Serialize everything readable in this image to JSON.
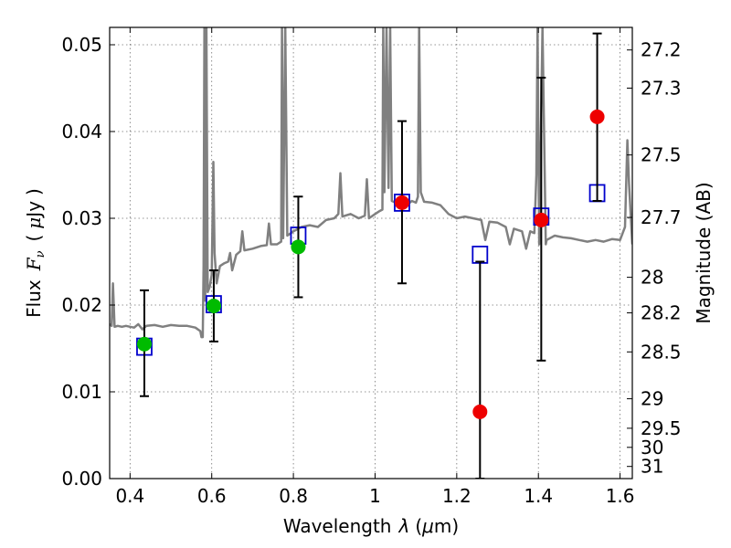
{
  "chart_data": {
    "type": "scatter",
    "title": "",
    "xlabel_parts": [
      "Wavelength",
      "λ",
      "(",
      "μ",
      "m)"
    ],
    "ylabel_parts": [
      "Flux",
      "F",
      "ν",
      "(",
      "μ",
      "Jy",
      ")"
    ],
    "y2label": "Magnitude (AB)",
    "xlim": [
      0.35,
      1.63
    ],
    "ylim": [
      0.0,
      0.052
    ],
    "x_ticks": [
      0.4,
      0.6,
      0.8,
      1.0,
      1.2,
      1.4,
      1.6
    ],
    "x_tick_labels": [
      "0.4",
      "0.6",
      "0.8",
      "1",
      "1.2",
      "1.4",
      "1.6"
    ],
    "y_ticks": [
      0.0,
      0.01,
      0.02,
      0.03,
      0.04,
      0.05
    ],
    "y_tick_labels": [
      "0.00",
      "0.01",
      "0.02",
      "0.03",
      "0.04",
      "0.05"
    ],
    "mag_ticks": [
      {
        "label": "27.2",
        "flux": 0.0494
      },
      {
        "label": "27.3",
        "flux": 0.045
      },
      {
        "label": "27.5",
        "flux": 0.0373
      },
      {
        "label": "27.7",
        "flux": 0.0301
      },
      {
        "label": "28",
        "flux": 0.0232
      },
      {
        "label": "28.2",
        "flux": 0.0191
      },
      {
        "label": "28.5",
        "flux": 0.0146
      },
      {
        "label": "29",
        "flux": 0.0092
      },
      {
        "label": "29.5",
        "flux": 0.0058
      },
      {
        "label": "30",
        "flux": 0.0036
      },
      {
        "label": "31",
        "flux": 0.0014
      }
    ],
    "grid": true,
    "colors": {
      "model_spectrum": "#808080",
      "model_photometry": "#0000cc",
      "detection": "#00bb00",
      "non_detection": "#ee0000",
      "errorbar": "#000000"
    },
    "series": [
      {
        "kind": "model_spectrum",
        "points": [
          [
            0.35,
            0.0178
          ],
          [
            0.355,
            0.0176
          ],
          [
            0.358,
            0.0225
          ],
          [
            0.362,
            0.0175
          ],
          [
            0.37,
            0.0176
          ],
          [
            0.38,
            0.0175
          ],
          [
            0.39,
            0.0176
          ],
          [
            0.4,
            0.0175
          ],
          [
            0.41,
            0.0174
          ],
          [
            0.42,
            0.0178
          ],
          [
            0.43,
            0.0172
          ],
          [
            0.44,
            0.0176
          ],
          [
            0.46,
            0.0177
          ],
          [
            0.48,
            0.0175
          ],
          [
            0.5,
            0.0177
          ],
          [
            0.52,
            0.0176
          ],
          [
            0.54,
            0.0176
          ],
          [
            0.56,
            0.0174
          ],
          [
            0.572,
            0.017
          ],
          [
            0.575,
            0.0163
          ],
          [
            0.578,
            0.0163
          ],
          [
            0.58,
            0.0245
          ],
          [
            0.582,
            0.052
          ],
          [
            0.584,
            0.0205
          ],
          [
            0.587,
            0.052
          ],
          [
            0.59,
            0.0215
          ],
          [
            0.595,
            0.0221
          ],
          [
            0.6,
            0.0235
          ],
          [
            0.604,
            0.0365
          ],
          [
            0.607,
            0.026
          ],
          [
            0.612,
            0.0225
          ],
          [
            0.62,
            0.0245
          ],
          [
            0.63,
            0.0248
          ],
          [
            0.64,
            0.025
          ],
          [
            0.645,
            0.026
          ],
          [
            0.65,
            0.024
          ],
          [
            0.66,
            0.0258
          ],
          [
            0.67,
            0.0262
          ],
          [
            0.675,
            0.0285
          ],
          [
            0.68,
            0.0263
          ],
          [
            0.7,
            0.0265
          ],
          [
            0.72,
            0.0268
          ],
          [
            0.735,
            0.0269
          ],
          [
            0.74,
            0.0294
          ],
          [
            0.745,
            0.027
          ],
          [
            0.76,
            0.027
          ],
          [
            0.77,
            0.0273
          ],
          [
            0.772,
            0.052
          ],
          [
            0.775,
            0.0277
          ],
          [
            0.78,
            0.052
          ],
          [
            0.785,
            0.028
          ],
          [
            0.8,
            0.0285
          ],
          [
            0.82,
            0.029
          ],
          [
            0.84,
            0.0292
          ],
          [
            0.86,
            0.029
          ],
          [
            0.88,
            0.0298
          ],
          [
            0.9,
            0.03
          ],
          [
            0.91,
            0.0305
          ],
          [
            0.915,
            0.0352
          ],
          [
            0.92,
            0.0302
          ],
          [
            0.94,
            0.0305
          ],
          [
            0.96,
            0.03
          ],
          [
            0.975,
            0.0303
          ],
          [
            0.98,
            0.0345
          ],
          [
            0.985,
            0.03
          ],
          [
            1.0,
            0.0305
          ],
          [
            1.01,
            0.0308
          ],
          [
            1.018,
            0.031
          ],
          [
            1.02,
            0.052
          ],
          [
            1.023,
            0.033
          ],
          [
            1.028,
            0.052
          ],
          [
            1.033,
            0.0335
          ],
          [
            1.037,
            0.052
          ],
          [
            1.041,
            0.032
          ],
          [
            1.05,
            0.0318
          ],
          [
            1.06,
            0.032
          ],
          [
            1.08,
            0.0316
          ],
          [
            1.09,
            0.032
          ],
          [
            1.1,
            0.0318
          ],
          [
            1.105,
            0.0325
          ],
          [
            1.108,
            0.052
          ],
          [
            1.112,
            0.033
          ],
          [
            1.12,
            0.0319
          ],
          [
            1.14,
            0.0318
          ],
          [
            1.16,
            0.0315
          ],
          [
            1.18,
            0.0305
          ],
          [
            1.2,
            0.03
          ],
          [
            1.22,
            0.0302
          ],
          [
            1.24,
            0.03
          ],
          [
            1.26,
            0.0298
          ],
          [
            1.27,
            0.0275
          ],
          [
            1.28,
            0.0296
          ],
          [
            1.3,
            0.0295
          ],
          [
            1.32,
            0.029
          ],
          [
            1.33,
            0.027
          ],
          [
            1.34,
            0.0288
          ],
          [
            1.36,
            0.0285
          ],
          [
            1.37,
            0.0265
          ],
          [
            1.38,
            0.0285
          ],
          [
            1.39,
            0.0283
          ],
          [
            1.395,
            0.035
          ],
          [
            1.398,
            0.052
          ],
          [
            1.402,
            0.027
          ],
          [
            1.41,
            0.052
          ],
          [
            1.418,
            0.027
          ],
          [
            1.42,
            0.0275
          ],
          [
            1.44,
            0.028
          ],
          [
            1.46,
            0.0278
          ],
          [
            1.48,
            0.0277
          ],
          [
            1.5,
            0.0275
          ],
          [
            1.52,
            0.0273
          ],
          [
            1.54,
            0.0275
          ],
          [
            1.56,
            0.0273
          ],
          [
            1.58,
            0.0276
          ],
          [
            1.6,
            0.0275
          ],
          [
            1.612,
            0.029
          ],
          [
            1.618,
            0.039
          ],
          [
            1.622,
            0.034
          ],
          [
            1.63,
            0.027
          ]
        ]
      },
      {
        "kind": "model_photometry",
        "points": [
          [
            0.435,
            0.0152
          ],
          [
            0.605,
            0.0201
          ],
          [
            0.812,
            0.028
          ],
          [
            1.066,
            0.0318
          ],
          [
            1.257,
            0.0258
          ],
          [
            1.407,
            0.0302
          ],
          [
            1.544,
            0.0329
          ]
        ]
      },
      {
        "kind": "detection",
        "points": [
          {
            "x": 0.435,
            "y": 0.0155,
            "yerr": [
              0.0095,
              0.0217
            ]
          },
          {
            "x": 0.605,
            "y": 0.0199,
            "yerr": [
              0.0158,
              0.024
            ]
          },
          {
            "x": 0.812,
            "y": 0.0267,
            "yerr": [
              0.0209,
              0.0325
            ]
          }
        ]
      },
      {
        "kind": "non_detection",
        "points": [
          {
            "x": 1.066,
            "y": 0.0318,
            "yerr": [
              0.0225,
              0.0412
            ]
          },
          {
            "x": 1.257,
            "y": 0.0077,
            "yerr": [
              0.0,
              0.025
            ]
          },
          {
            "x": 1.407,
            "y": 0.0298,
            "yerr": [
              0.0136,
              0.0462
            ]
          },
          {
            "x": 1.544,
            "y": 0.0417,
            "yerr": [
              0.032,
              0.0513
            ]
          }
        ]
      }
    ]
  }
}
